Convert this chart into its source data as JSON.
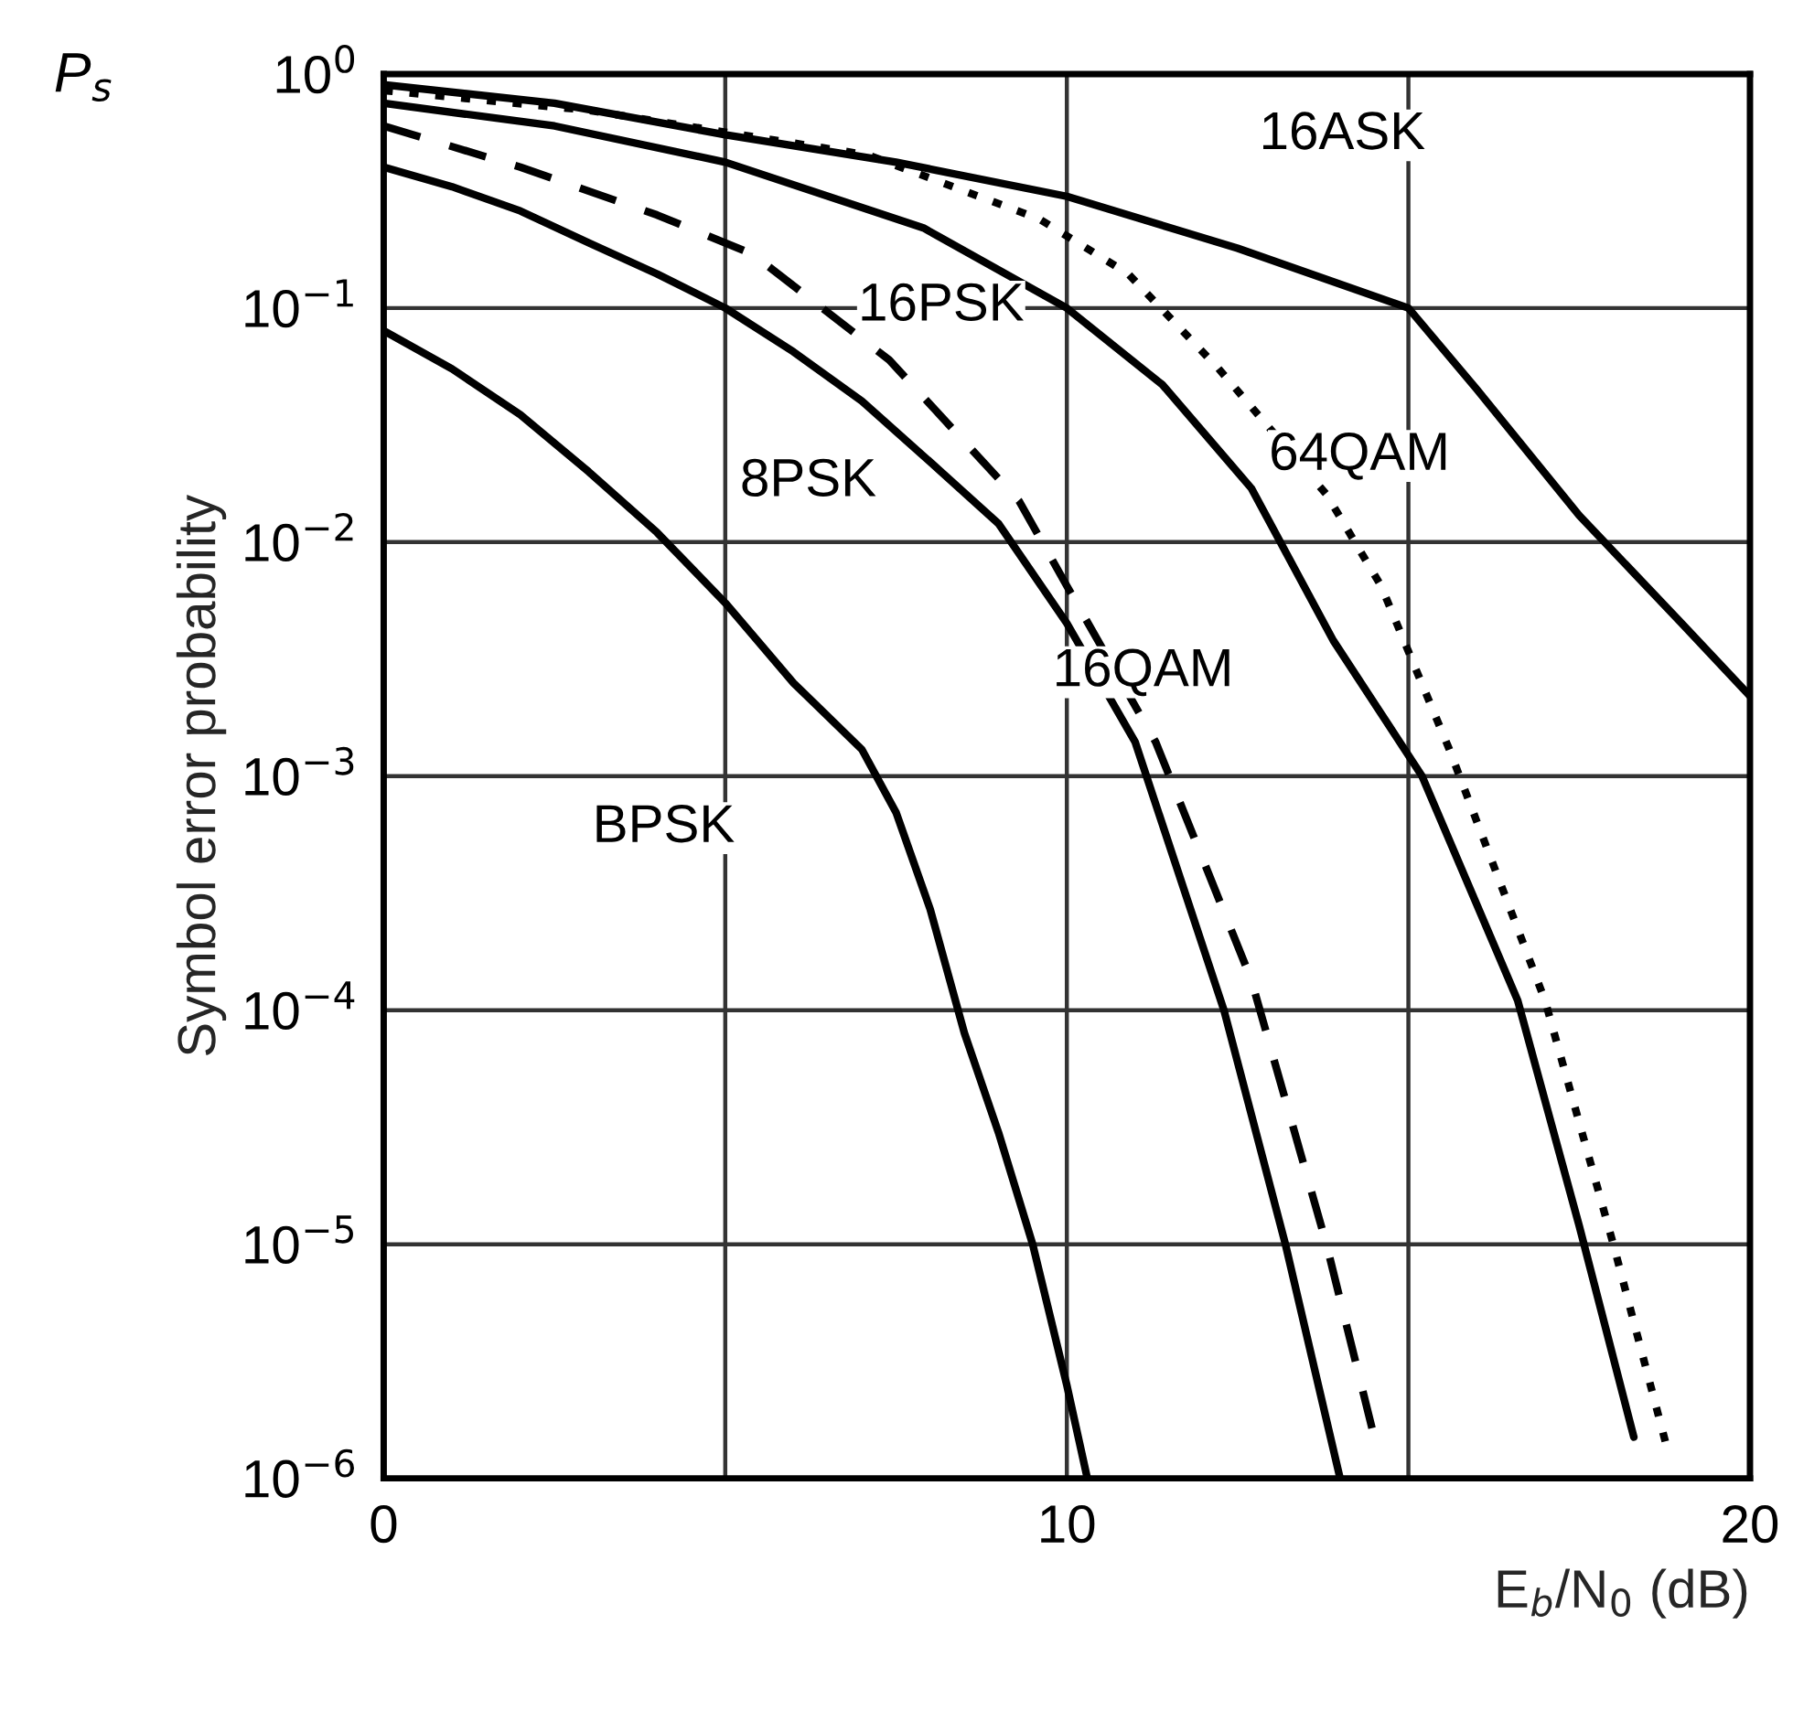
{
  "chart_data": {
    "type": "line",
    "xlabel": "E$_{b}$/N$_{0}$ (dB)",
    "ylabel": "Symbol error probability",
    "log": "y",
    "grid": true,
    "xlim": [
      0,
      20
    ],
    "xticks": [
      0,
      {
        "value": 5,
        "label": null
      },
      10,
      {
        "value": 15,
        "label": null
      },
      20
    ],
    "ylim": [
      1e-06,
      1
    ],
    "yticks": [
      {
        "value": 1,
        "label": "10$^{0}$"
      },
      {
        "value": 0.1,
        "label": "10$^{−1}$"
      },
      {
        "value": 0.01,
        "label": "10$^{−2}$"
      },
      {
        "value": 0.001,
        "label": "10$^{−3}$"
      },
      {
        "value": 0.0001,
        "label": "10$^{−4}$"
      },
      {
        "value": 1e-05,
        "label": "10$^{−5}$"
      },
      {
        "value": 1e-06,
        "label": "10$^{−6}$"
      }
    ],
    "series": [
      {
        "name": "BPSK",
        "color": "#000000",
        "line_style": "solid",
        "x": [
          0,
          1,
          2,
          3,
          4,
          5,
          6,
          7,
          7.5,
          8,
          8.5,
          9,
          9.5,
          10,
          10.3
        ],
        "values": [
          0.08,
          0.055,
          0.035,
          0.02,
          0.011,
          0.0055,
          0.0025,
          0.0013,
          0.0007,
          0.00027,
          8e-05,
          3e-05,
          1e-05,
          2.5e-06,
          1e-06
        ]
      },
      {
        "name": "8PSK",
        "color": "#000000",
        "line_style": "solid",
        "x": [
          0,
          1,
          2,
          3,
          4,
          5,
          6,
          7,
          8,
          9,
          10,
          11,
          12.3,
          13.2,
          14
        ],
        "values": [
          0.4,
          0.33,
          0.26,
          0.19,
          0.14,
          0.1,
          0.065,
          0.04,
          0.022,
          0.012,
          0.0045,
          0.0014,
          0.0001,
          1e-05,
          1e-06
        ]
      },
      {
        "name": "16QAM",
        "color": "#000000",
        "line_style": "dashed",
        "x": [
          0,
          2,
          4,
          5.4,
          7.4,
          9.3,
          10,
          11.3,
          12.7,
          13.8,
          14.5
        ],
        "values": [
          0.6,
          0.4,
          0.25,
          0.17,
          0.06,
          0.015,
          0.0065,
          0.0014,
          0.000135,
          1e-05,
          1.5e-06
        ]
      },
      {
        "name": "16PSK",
        "color": "#000000",
        "line_style": "solid",
        "x": [
          0,
          2.5,
          5,
          7.9,
          10,
          11.4,
          12.7,
          13.9,
          15.2,
          16.6,
          17.5,
          18.3
        ],
        "values": [
          0.75,
          0.6,
          0.42,
          0.22,
          0.1,
          0.047,
          0.017,
          0.0038,
          0.001,
          0.00011,
          1.2e-05,
          1.5e-06
        ]
      },
      {
        "name": "64QAM",
        "color": "#000000",
        "line_style": "dotted",
        "x": [
          0,
          3,
          7.1,
          9.6,
          10.9,
          12.2,
          13.8,
          14.6,
          15.6,
          17,
          18,
          18.8
        ],
        "values": [
          0.85,
          0.7,
          0.45,
          0.24,
          0.14,
          0.056,
          0.016,
          0.0065,
          0.0013,
          0.00011,
          1e-05,
          1.3e-06
        ]
      },
      {
        "name": "16ASK",
        "color": "#000000",
        "line_style": "solid",
        "x": [
          0,
          2.5,
          5,
          7.5,
          10,
          12.5,
          15,
          16,
          17.5,
          19,
          20
        ],
        "values": [
          0.9,
          0.75,
          0.55,
          0.42,
          0.3,
          0.18,
          0.1,
          0.045,
          0.013,
          0.0045,
          0.0022
        ]
      }
    ],
    "annotations": [
      "P$_{s}$"
    ]
  }
}
